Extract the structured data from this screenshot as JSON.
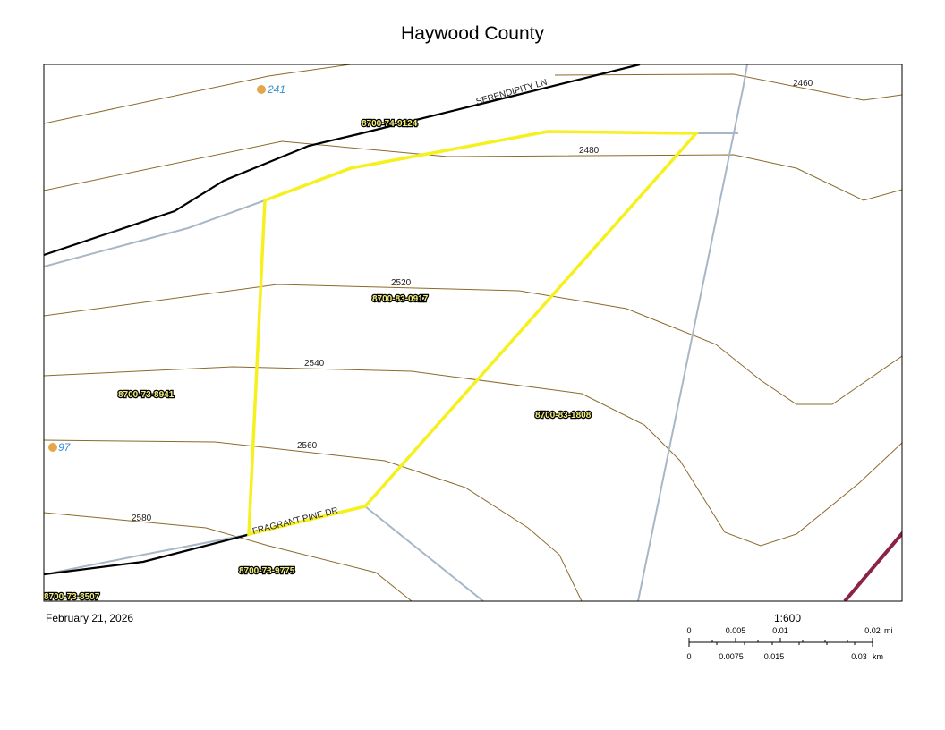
{
  "title": "Haywood County",
  "date": "February 21, 2026",
  "scale": "1:600",
  "scale_bar": {
    "mi_labels": [
      "0",
      "0.005",
      "0.01",
      "0.02"
    ],
    "mi_unit": "mi",
    "km_labels": [
      "0",
      "0.0075",
      "0.015",
      "0.03"
    ],
    "km_unit": "km"
  },
  "roads": [
    "SERENDIPITY LN",
    "FRAGRANT PINE DR"
  ],
  "contours": [
    "2460",
    "2480",
    "2520",
    "2540",
    "2560",
    "2580"
  ],
  "parcels": [
    "8700-74-9124",
    "8700-83-0917",
    "8700-73-8941",
    "8700-83-1808",
    "8700-73-9775",
    "8700-73-8507"
  ],
  "addresses": [
    "241",
    "97"
  ]
}
